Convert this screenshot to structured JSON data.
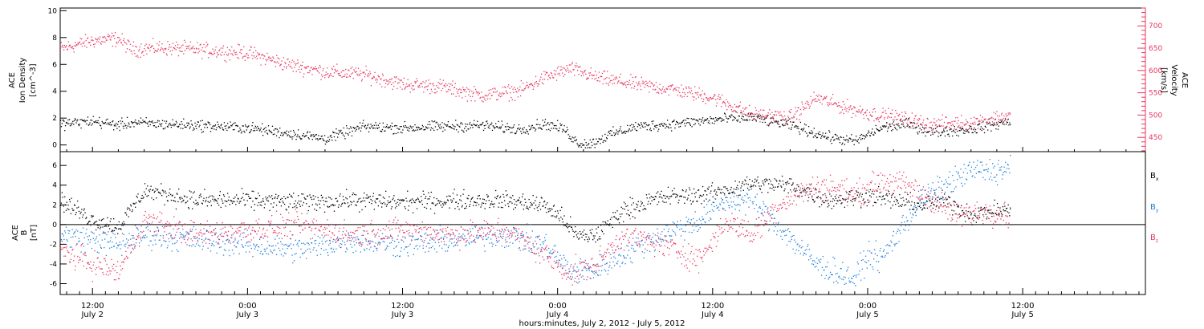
{
  "xaxis": {
    "title": "hours:minutes,  July  2, 2012  -  July  5, 2012",
    "ticks": [
      {
        "time": "12:00",
        "day": "July 2",
        "hour": 12
      },
      {
        "time": "0:00",
        "day": "July 3",
        "hour": 24
      },
      {
        "time": "12:00",
        "day": "July 3",
        "hour": 36
      },
      {
        "time": "0:00",
        "day": "July 4",
        "hour": 48
      },
      {
        "time": "12:00",
        "day": "July 4",
        "hour": 60
      },
      {
        "time": "0:00",
        "day": "July 5",
        "hour": 72
      },
      {
        "time": "12:00",
        "day": "July 5",
        "hour": 84
      }
    ]
  },
  "colors": {
    "density": "#000000",
    "velocity": "#e8375f",
    "bx": "#000000",
    "by": "#1e7fdc",
    "bz": "#e8375f"
  },
  "chart_data": [
    {
      "type": "scatter",
      "panel": "top",
      "ylabel": [
        "ACE",
        "Ion Density",
        "[cm^-3]"
      ],
      "ylim": [
        -0.5,
        10.2
      ],
      "yticks": [
        0,
        2,
        4,
        6,
        8,
        10
      ],
      "y2label": [
        "ACE",
        "Velocity",
        "[km/s]"
      ],
      "y2lim": [
        418,
        740
      ],
      "y2ticks": [
        450,
        500,
        550,
        600,
        650,
        700
      ],
      "x_range_hours": [
        9.5,
        93.5
      ],
      "series": [
        {
          "key": "density",
          "axis": "left",
          "x": [
            9.5,
            12,
            14,
            15,
            17,
            20,
            24,
            28,
            30,
            33,
            36,
            39,
            42,
            45,
            47,
            48.5,
            49.5,
            50.5,
            52,
            54,
            57,
            60,
            63,
            66,
            69,
            71,
            73,
            75,
            77,
            80,
            82,
            83
          ],
          "y": [
            1.6,
            1.8,
            1.5,
            1.7,
            1.6,
            1.5,
            1.3,
            0.8,
            0.5,
            1.4,
            1.3,
            1.4,
            1.5,
            1.2,
            1.6,
            1.2,
            0.2,
            0.1,
            0.8,
            1.4,
            1.6,
            1.9,
            2.1,
            1.5,
            0.6,
            0.3,
            1.3,
            1.6,
            1.0,
            1.2,
            1.6,
            1.8
          ]
        },
        {
          "key": "velocity",
          "axis": "right",
          "x": [
            9.5,
            12,
            14,
            15,
            17,
            20,
            24,
            27,
            30,
            33,
            36,
            39,
            42,
            45,
            47,
            49,
            51,
            54,
            57,
            60,
            63,
            66,
            68,
            70,
            72,
            75,
            77,
            80,
            82,
            83
          ],
          "y": [
            650,
            668,
            672,
            648,
            652,
            648,
            640,
            615,
            598,
            592,
            570,
            565,
            545,
            555,
            585,
            605,
            585,
            570,
            558,
            540,
            503,
            495,
            540,
            520,
            505,
            492,
            480,
            485,
            495,
            500
          ]
        }
      ]
    },
    {
      "type": "scatter",
      "panel": "bottom",
      "ylabel": [
        "ACE",
        "B",
        "[nT]"
      ],
      "ylim": [
        -7.1,
        7.4
      ],
      "yticks": [
        -6,
        -4,
        -2,
        0,
        2,
        4,
        6
      ],
      "x_range_hours": [
        9.5,
        93.5
      ],
      "series": [
        {
          "key": "bx",
          "name": "Bx",
          "x": [
            9.5,
            12,
            14,
            16,
            20,
            24,
            28,
            32,
            36,
            40,
            44,
            47,
            48.5,
            49.5,
            51,
            53,
            56,
            60,
            63,
            66,
            69,
            72,
            74,
            76,
            78,
            80,
            82,
            83
          ],
          "y": [
            2.5,
            0.5,
            -0.2,
            3.5,
            2.5,
            2.5,
            2.3,
            2.5,
            2.3,
            2.5,
            2.5,
            2.0,
            0.5,
            -1.2,
            -1.0,
            1.5,
            2.8,
            3.2,
            4.2,
            4.0,
            2.5,
            3.0,
            2.5,
            2.0,
            2.5,
            1.0,
            1.5,
            1.5
          ]
        },
        {
          "key": "by",
          "name": "By",
          "x": [
            9.5,
            12,
            14,
            16,
            20,
            24,
            28,
            32,
            36,
            40,
            44,
            47,
            49,
            51,
            53,
            56,
            59,
            61,
            63,
            65,
            68,
            70,
            71,
            72,
            73,
            76,
            78,
            80,
            82,
            83
          ],
          "y": [
            -1.0,
            -1.5,
            -2.0,
            -1.0,
            -1.5,
            -2.0,
            -2.5,
            -1.5,
            -2.0,
            -1.5,
            -1.0,
            -2.0,
            -4.8,
            -4.5,
            -3.0,
            -1.0,
            0.5,
            2.5,
            2.5,
            0.0,
            -4.0,
            -5.0,
            -5.5,
            -3.0,
            -3.5,
            2.5,
            4.0,
            5.5,
            5.5,
            5.8
          ]
        },
        {
          "key": "bz",
          "name": "Bz",
          "x": [
            9.5,
            12,
            14,
            16,
            20,
            24,
            28,
            32,
            36,
            40,
            44,
            47,
            49,
            51,
            53,
            56,
            59,
            61,
            63,
            65,
            67,
            69,
            71,
            73,
            75,
            77,
            79,
            81,
            83
          ],
          "y": [
            -2.5,
            -4.0,
            -4.8,
            0.5,
            -1.0,
            -0.5,
            0.0,
            -1.0,
            -0.5,
            -1.0,
            -0.5,
            -3.0,
            -5.0,
            -4.0,
            -1.0,
            -2.0,
            -3.5,
            0.5,
            -1.0,
            2.0,
            3.5,
            4.0,
            3.0,
            4.5,
            4.0,
            2.5,
            0.8,
            1.5,
            1.0
          ]
        }
      ]
    }
  ],
  "legend": [
    {
      "key": "bx",
      "base": "B",
      "sub": "x"
    },
    {
      "key": "by",
      "base": "B",
      "sub": "y"
    },
    {
      "key": "bz",
      "base": "B",
      "sub": "z"
    }
  ]
}
